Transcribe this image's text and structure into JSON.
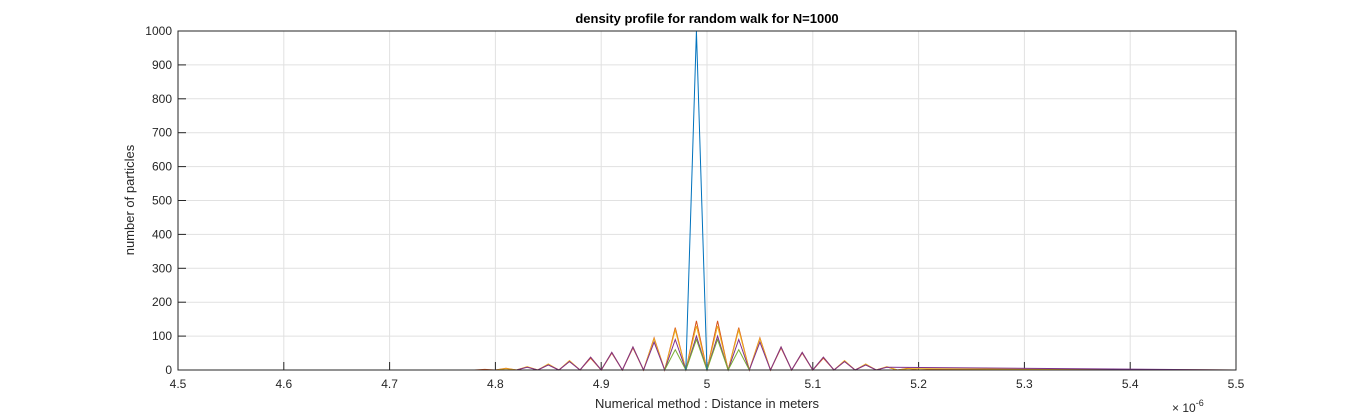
{
  "chart_data": {
    "type": "line",
    "title": "density profile for random walk for N=1000",
    "xlabel": "Numerical method : Distance in meters",
    "ylabel": "number of particles",
    "x_exponent_label": "× 10",
    "x_exponent_power": "-6",
    "xlim": [
      4.5,
      5.5
    ],
    "ylim": [
      0,
      1000
    ],
    "xticks": [
      "4.5",
      "4.6",
      "4.7",
      "4.8",
      "4.9",
      "5",
      "5.1",
      "5.2",
      "5.3",
      "5.4",
      "5.5"
    ],
    "yticks": [
      "0",
      "100",
      "200",
      "300",
      "400",
      "500",
      "600",
      "700",
      "800",
      "900",
      "1000"
    ],
    "grid": true,
    "x": [
      4.5,
      4.88,
      4.89,
      4.9,
      4.91,
      4.92,
      4.93,
      4.94,
      4.95,
      4.96,
      4.97,
      4.98,
      4.99,
      5.0,
      5.01,
      5.02,
      5.03,
      5.04,
      5.05,
      5.06,
      5.07,
      5.08,
      5.09,
      5.1,
      5.11,
      5.12,
      5.5
    ],
    "series": [
      {
        "color": "#0072bd",
        "values": [
          0,
          0,
          0,
          0,
          0,
          0,
          0,
          0,
          0,
          0,
          0,
          0,
          1000,
          0,
          0,
          0,
          0,
          0,
          0,
          0,
          0,
          0,
          0,
          0,
          0,
          0,
          0
        ]
      },
      {
        "color": "#d95319",
        "values": [
          0,
          0,
          0,
          0,
          0,
          0,
          0,
          0,
          0,
          0,
          0,
          0,
          140,
          0,
          0,
          0,
          0,
          0,
          0,
          0,
          0,
          0,
          0,
          0,
          0,
          0,
          0
        ]
      },
      {
        "color": "#edb120",
        "values": [
          0,
          0,
          0,
          0,
          0,
          0,
          0,
          0,
          0,
          0,
          0,
          0,
          0,
          0,
          0,
          0,
          0,
          0,
          0,
          0,
          0,
          0,
          0,
          0,
          0,
          0,
          0
        ]
      }
    ],
    "extra_series": [
      {
        "color": "#d95319",
        "x": [
          4.5,
          4.78,
          4.79,
          4.8,
          4.81,
          4.82,
          4.83,
          4.84,
          4.85,
          4.86,
          4.87,
          4.88,
          4.89,
          4.9,
          4.91,
          4.92,
          4.93,
          4.94,
          4.95,
          4.96,
          4.97,
          4.98,
          4.99,
          5.0,
          5.01,
          5.02,
          5.03,
          5.04,
          5.05,
          5.06,
          5.07,
          5.08,
          5.09,
          5.1,
          5.11,
          5.12,
          5.13,
          5.14,
          5.15,
          5.16,
          5.17,
          5.18,
          5.19,
          5.2,
          5.21,
          5.5
        ],
        "values": [
          0,
          0,
          2,
          0,
          5,
          0,
          9,
          0,
          15,
          0,
          25,
          0,
          35,
          0,
          50,
          0,
          65,
          0,
          95,
          0,
          125,
          0,
          145,
          0,
          145,
          0,
          125,
          0,
          95,
          0,
          65,
          0,
          50,
          0,
          35,
          0,
          25,
          0,
          15,
          0,
          9,
          0,
          5,
          0,
          2,
          0
        ]
      },
      {
        "color": "#edb120",
        "x": [
          4.5,
          4.8,
          4.81,
          4.82,
          4.83,
          4.84,
          4.85,
          4.86,
          4.87,
          4.88,
          4.89,
          4.9,
          4.91,
          4.92,
          4.93,
          4.94,
          4.95,
          4.96,
          4.97,
          4.98,
          4.99,
          5.0,
          5.01,
          5.02,
          5.03,
          5.04,
          5.05,
          5.06,
          5.07,
          5.08,
          5.09,
          5.1,
          5.11,
          5.12,
          5.13,
          5.14,
          5.15,
          5.16,
          5.17,
          5.18,
          5.19,
          5.5
        ],
        "values": [
          0,
          0,
          4,
          0,
          10,
          0,
          18,
          0,
          28,
          0,
          38,
          0,
          52,
          0,
          68,
          0,
          92,
          0,
          118,
          0,
          130,
          0,
          130,
          0,
          118,
          0,
          92,
          0,
          68,
          0,
          52,
          0,
          38,
          0,
          28,
          0,
          18,
          0,
          10,
          0,
          4,
          0
        ]
      },
      {
        "color": "#7e2f8e",
        "x": [
          4.5,
          4.82,
          4.83,
          4.84,
          4.85,
          4.86,
          4.87,
          4.88,
          4.89,
          4.9,
          4.91,
          4.92,
          4.93,
          4.94,
          4.95,
          4.96,
          4.97,
          4.98,
          4.99,
          5.0,
          5.01,
          5.02,
          5.03,
          5.04,
          5.05,
          5.06,
          5.07,
          5.08,
          5.09,
          5.1,
          5.11,
          5.12,
          5.13,
          5.14,
          5.15,
          5.16,
          5.17,
          5.5
        ],
        "values": [
          0,
          0,
          8,
          0,
          15,
          0,
          25,
          0,
          38,
          0,
          52,
          0,
          68,
          0,
          82,
          0,
          90,
          0,
          100,
          0,
          100,
          0,
          90,
          0,
          82,
          0,
          68,
          0,
          52,
          0,
          38,
          0,
          25,
          0,
          15,
          0,
          8,
          0
        ]
      },
      {
        "color": "#77ac30",
        "x": [
          4.5,
          4.96,
          4.97,
          4.98,
          4.99,
          5.0,
          5.01,
          5.02,
          5.03,
          5.04,
          5.5
        ],
        "values": [
          0,
          0,
          60,
          0,
          90,
          0,
          90,
          0,
          60,
          0,
          0
        ]
      }
    ]
  }
}
